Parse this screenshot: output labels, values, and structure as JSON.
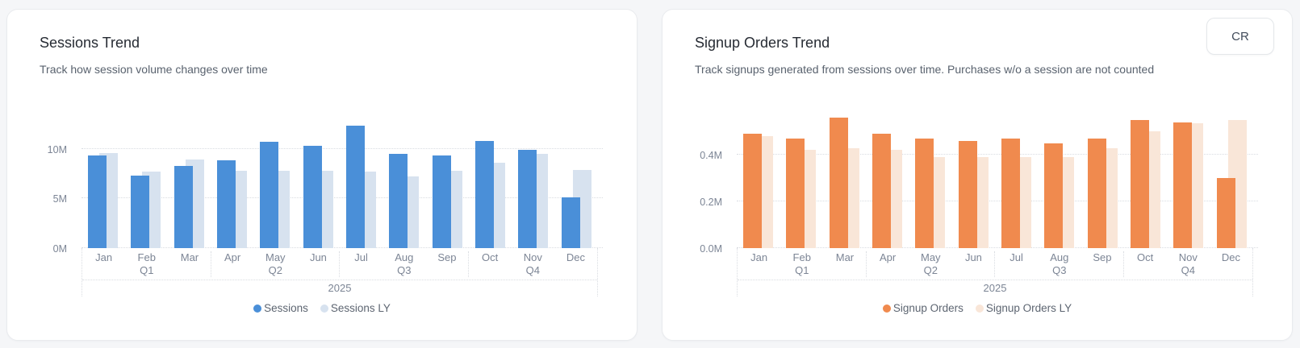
{
  "page": {
    "background": "#f5f6f8"
  },
  "cards": [
    {
      "title": "Sessions Trend",
      "subtitle": "Track how session volume changes over time",
      "legend": [
        {
          "label": "Sessions",
          "color": "#4a8fd8"
        },
        {
          "label": "Sessions LY",
          "color": "#d7e2ef"
        }
      ]
    },
    {
      "title": "Signup Orders Trend",
      "subtitle": "Track signups generated from sessions over time. Purchases w/o a session are not counted",
      "action_button": "CR",
      "legend": [
        {
          "label": "Signup Orders",
          "color": "#f08a4e"
        },
        {
          "label": "Signup Orders LY",
          "color": "#f9e6d8"
        }
      ]
    }
  ],
  "chart_data": [
    {
      "type": "bar",
      "title": "Sessions Trend",
      "categories": [
        "Jan",
        "Feb",
        "Mar",
        "Apr",
        "May",
        "Jun",
        "Jul",
        "Aug",
        "Sep",
        "Oct",
        "Nov",
        "Dec"
      ],
      "quarter_labels": {
        "1": "Q1",
        "4": "Q2",
        "7": "Q3",
        "10": "Q4"
      },
      "year_label": "2025",
      "unit": "M sessions",
      "series": [
        {
          "name": "Sessions",
          "color": "#4a8fd8",
          "values": [
            9.3,
            7.3,
            8.3,
            8.8,
            10.7,
            10.3,
            12.3,
            9.5,
            9.3,
            10.8,
            9.9,
            5.1
          ]
        },
        {
          "name": "Sessions LY",
          "color": "#d7e2ef",
          "values": [
            9.6,
            7.7,
            8.9,
            7.8,
            7.8,
            7.8,
            7.7,
            7.2,
            7.8,
            8.6,
            9.5,
            7.9
          ]
        }
      ],
      "yticks": [
        {
          "v": 0,
          "label": "0M"
        },
        {
          "v": 5,
          "label": "5M"
        },
        {
          "v": 10,
          "label": "10M"
        }
      ],
      "ylim": [
        0,
        13.5
      ],
      "grid": "dotted-horizontal",
      "legend_position": "bottom"
    },
    {
      "type": "bar",
      "title": "Signup Orders Trend",
      "categories": [
        "Jan",
        "Feb",
        "Mar",
        "Apr",
        "May",
        "Jun",
        "Jul",
        "Aug",
        "Sep",
        "Oct",
        "Nov",
        "Dec"
      ],
      "quarter_labels": {
        "1": "Q1",
        "4": "Q2",
        "7": "Q3",
        "10": "Q4"
      },
      "year_label": "2025",
      "unit": "M signup orders",
      "series": [
        {
          "name": "Signup Orders",
          "color": "#f08a4e",
          "values": [
            0.49,
            0.47,
            0.56,
            0.49,
            0.47,
            0.46,
            0.47,
            0.45,
            0.47,
            0.55,
            0.54,
            0.3
          ]
        },
        {
          "name": "Signup Orders LY",
          "color": "#f9e6d8",
          "values": [
            0.48,
            0.42,
            0.43,
            0.42,
            0.39,
            0.39,
            0.39,
            0.39,
            0.43,
            0.5,
            0.535,
            0.55
          ]
        }
      ],
      "yticks": [
        {
          "v": 0,
          "label": "0.0M"
        },
        {
          "v": 0.2,
          "label": "0.2M"
        },
        {
          "v": 0.4,
          "label": "0.4M"
        }
      ],
      "ylim": [
        0,
        0.575
      ],
      "grid": "dotted-horizontal",
      "legend_position": "bottom"
    }
  ]
}
